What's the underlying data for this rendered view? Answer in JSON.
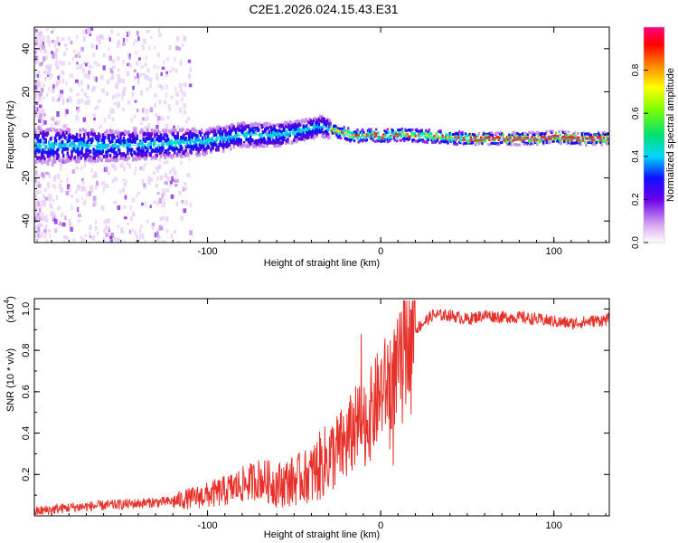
{
  "title": "C2E1.2026.024.15.43.E31",
  "chart_data": [
    {
      "type": "heatmap",
      "title": "C2E1.2026.024.15.43.E31",
      "xlabel": "Height of straight line (km)",
      "ylabel": "Frequency (Hz)",
      "xlim": [
        -200,
        132
      ],
      "ylim": [
        -50,
        50
      ],
      "xticks": [
        -100,
        0,
        100
      ],
      "yticks": [
        -40,
        -20,
        0,
        20,
        40
      ],
      "ridge": {
        "x": [
          -200,
          -150,
          -120,
          -100,
          -80,
          -60,
          -45,
          -35,
          -25,
          -15,
          -5,
          0,
          10,
          30,
          50,
          70,
          80,
          90,
          100,
          110,
          132
        ],
        "y": [
          -5,
          -5,
          -4,
          -3,
          0,
          0,
          2,
          4,
          1,
          -1,
          0,
          -1,
          0,
          -1,
          -2,
          -2,
          -2,
          -2,
          -1,
          -2,
          -2
        ]
      },
      "colorbar": {
        "label": "Normalized spectral amplitude",
        "ticks": [
          "0.0",
          "0.2",
          "0.4",
          "0.6",
          "0.8"
        ],
        "range": [
          0,
          1
        ]
      }
    },
    {
      "type": "line",
      "xlabel": "Height of straight line (km)",
      "ylabel": "SNR (10 * v/v)",
      "multiplier": "(x10",
      "multiplier_exp": "4",
      "multiplier_close": ")",
      "xlim": [
        -200,
        132
      ],
      "ylim": [
        0,
        1.05
      ],
      "xticks": [
        -100,
        0,
        100
      ],
      "yticks": [
        "0.2",
        "0.4",
        "0.6",
        "0.8",
        "1.0"
      ],
      "series": [
        {
          "name": "SNR",
          "color": "#e8302a",
          "x": [
            -200,
            -180,
            -160,
            -140,
            -120,
            -100,
            -90,
            -80,
            -70,
            -60,
            -50,
            -40,
            -30,
            -20,
            -15,
            -10,
            -5,
            0,
            5,
            10,
            15,
            20,
            30,
            40,
            50,
            60,
            70,
            80,
            90,
            100,
            110,
            120,
            132
          ],
          "values": [
            0.02,
            0.04,
            0.05,
            0.06,
            0.07,
            0.1,
            0.12,
            0.15,
            0.18,
            0.15,
            0.17,
            0.2,
            0.28,
            0.35,
            0.42,
            0.45,
            0.5,
            0.6,
            0.65,
            0.7,
            0.85,
            0.9,
            0.97,
            0.97,
            0.95,
            0.97,
            0.96,
            0.96,
            0.95,
            0.94,
            0.93,
            0.94,
            0.95
          ]
        }
      ]
    }
  ]
}
